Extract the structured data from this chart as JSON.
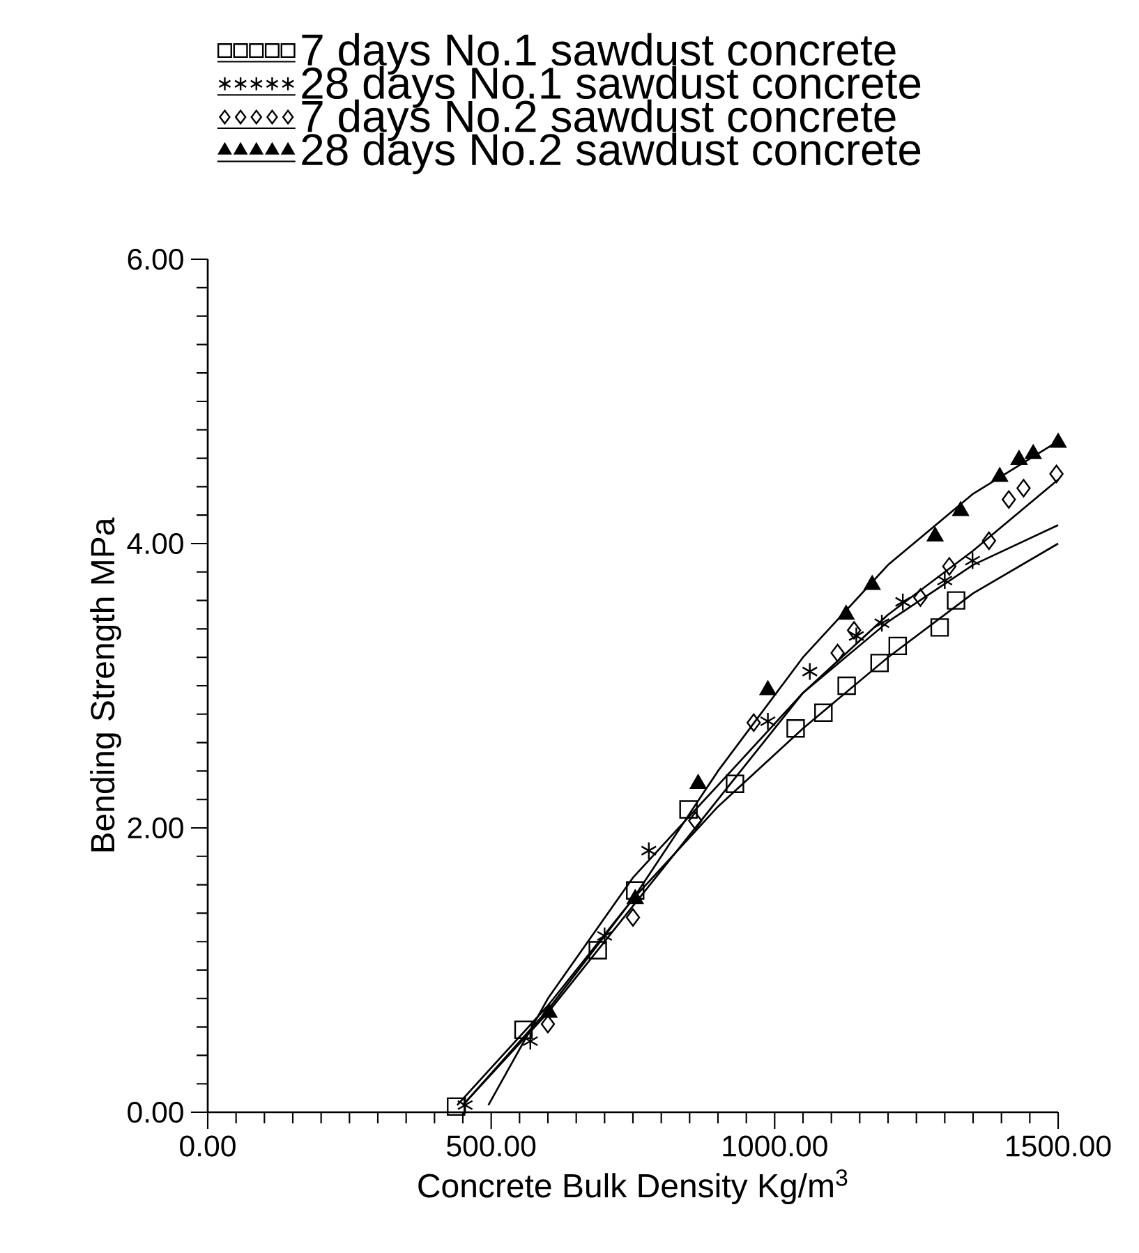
{
  "chart_data": {
    "type": "scatter",
    "xlabel": "Concrete Bulk Density Kg/m$^{3}$",
    "ylabel": "Bending Strength MPa",
    "legend": "top",
    "line_style": "solid",
    "xlim": [
      0,
      1500
    ],
    "ylim": [
      0,
      6
    ],
    "xticks": [
      {
        "value": 0,
        "label": "0.00"
      },
      {
        "value": 50,
        "label": null
      },
      {
        "value": 100,
        "label": null
      },
      {
        "value": 150,
        "label": null
      },
      {
        "value": 200,
        "label": null
      },
      {
        "value": 250,
        "label": null
      },
      {
        "value": 300,
        "label": null
      },
      {
        "value": 350,
        "label": null
      },
      {
        "value": 400,
        "label": null
      },
      {
        "value": 450,
        "label": null
      },
      {
        "value": 500,
        "label": "500.00"
      },
      {
        "value": 550,
        "label": null
      },
      {
        "value": 600,
        "label": null
      },
      {
        "value": 650,
        "label": null
      },
      {
        "value": 700,
        "label": null
      },
      {
        "value": 750,
        "label": null
      },
      {
        "value": 800,
        "label": null
      },
      {
        "value": 850,
        "label": null
      },
      {
        "value": 900,
        "label": null
      },
      {
        "value": 950,
        "label": null
      },
      {
        "value": 1000,
        "label": "1000.00"
      },
      {
        "value": 1050,
        "label": null
      },
      {
        "value": 1100,
        "label": null
      },
      {
        "value": 1150,
        "label": null
      },
      {
        "value": 1200,
        "label": null
      },
      {
        "value": 1250,
        "label": null
      },
      {
        "value": 1300,
        "label": null
      },
      {
        "value": 1350,
        "label": null
      },
      {
        "value": 1400,
        "label": null
      },
      {
        "value": 1450,
        "label": null
      },
      {
        "value": 1500,
        "label": "1500.00"
      }
    ],
    "yticks": [
      {
        "value": 0,
        "label": "0.00"
      },
      {
        "value": 0.2,
        "label": null
      },
      {
        "value": 0.4,
        "label": null
      },
      {
        "value": 0.6,
        "label": null
      },
      {
        "value": 0.8,
        "label": null
      },
      {
        "value": 1,
        "label": null
      },
      {
        "value": 1.2,
        "label": null
      },
      {
        "value": 1.4,
        "label": null
      },
      {
        "value": 1.6,
        "label": null
      },
      {
        "value": 1.8,
        "label": null
      },
      {
        "value": 2,
        "label": "2.00"
      },
      {
        "value": 2.2,
        "label": null
      },
      {
        "value": 2.4,
        "label": null
      },
      {
        "value": 2.6,
        "label": null
      },
      {
        "value": 2.8,
        "label": null
      },
      {
        "value": 3,
        "label": null
      },
      {
        "value": 3.2,
        "label": null
      },
      {
        "value": 3.4,
        "label": null
      },
      {
        "value": 3.6,
        "label": null
      },
      {
        "value": 3.8,
        "label": null
      },
      {
        "value": 4,
        "label": "4.00"
      },
      {
        "value": 4.2,
        "label": null
      },
      {
        "value": 4.4,
        "label": null
      },
      {
        "value": 4.6,
        "label": null
      },
      {
        "value": 4.8,
        "label": null
      },
      {
        "value": 5,
        "label": null
      },
      {
        "value": 5.2,
        "label": null
      },
      {
        "value": 5.4,
        "label": null
      },
      {
        "value": 5.6,
        "label": null
      },
      {
        "value": 5.8,
        "label": null
      },
      {
        "value": 6,
        "label": "6.00"
      }
    ],
    "series": [
      {
        "name": "7 days No.1 sawdust concrete",
        "marker": "square",
        "color": "#000000",
        "x": [
          438,
          557,
          688,
          754,
          848,
          930,
          1037,
          1086,
          1127,
          1185,
          1217,
          1291,
          1320
        ],
        "values": [
          0.04,
          0.58,
          1.14,
          1.56,
          2.13,
          2.31,
          2.7,
          2.81,
          3.0,
          3.16,
          3.28,
          3.41,
          3.6
        ]
      },
      {
        "name": "28 days No.1 sawdust concrete",
        "marker": "cross",
        "color": "#000000",
        "x": [
          454,
          569,
          700,
          778,
          988,
          1062,
          1144,
          1189,
          1226,
          1300,
          1349
        ],
        "values": [
          0.05,
          0.5,
          1.24,
          1.84,
          2.75,
          3.1,
          3.35,
          3.44,
          3.59,
          3.74,
          3.88
        ]
      },
      {
        "name": "7 days No.2 sawdust concrete",
        "marker": "diamond",
        "color": "#000000",
        "x": [
          600,
          750,
          860,
          963,
          1111,
          1140,
          1257,
          1308,
          1378,
          1413,
          1439,
          1497
        ],
        "values": [
          0.62,
          1.37,
          2.05,
          2.74,
          3.23,
          3.39,
          3.62,
          3.84,
          4.02,
          4.31,
          4.39,
          4.49
        ]
      },
      {
        "name": "28 days No.2 sawdust concrete",
        "marker": "triangle",
        "color": "#000000",
        "x": [
          602,
          754,
          865,
          988,
          1126,
          1172,
          1283,
          1328,
          1397,
          1431,
          1456,
          1500
        ],
        "values": [
          0.7,
          1.5,
          2.31,
          2.97,
          3.5,
          3.71,
          4.05,
          4.23,
          4.47,
          4.59,
          4.63,
          4.71
        ]
      },
      {
        "type": "line",
        "marker": "none",
        "color": "#000000",
        "x": [
          440,
          600,
          750,
          900,
          1050,
          1200,
          1350,
          1500
        ],
        "values": [
          0.05,
          0.75,
          1.5,
          2.15,
          2.7,
          3.2,
          3.65,
          4.0
        ]
      },
      {
        "type": "line",
        "marker": "none",
        "color": "#000000",
        "x": [
          495,
          600,
          750,
          900,
          1050,
          1200,
          1350,
          1500
        ],
        "values": [
          0.05,
          0.8,
          1.65,
          2.3,
          2.95,
          3.45,
          3.85,
          4.13
        ]
      },
      {
        "type": "line",
        "marker": "none",
        "color": "#000000",
        "x": [
          450,
          600,
          750,
          900,
          1050,
          1200,
          1350,
          1500
        ],
        "values": [
          0.05,
          0.7,
          1.45,
          2.2,
          2.95,
          3.5,
          3.95,
          4.45
        ]
      },
      {
        "type": "line",
        "marker": "none",
        "color": "#000000",
        "x": [
          450,
          600,
          750,
          900,
          1050,
          1200,
          1350,
          1500
        ],
        "values": [
          0.05,
          0.72,
          1.5,
          2.4,
          3.2,
          3.85,
          4.35,
          4.72
        ]
      }
    ]
  }
}
